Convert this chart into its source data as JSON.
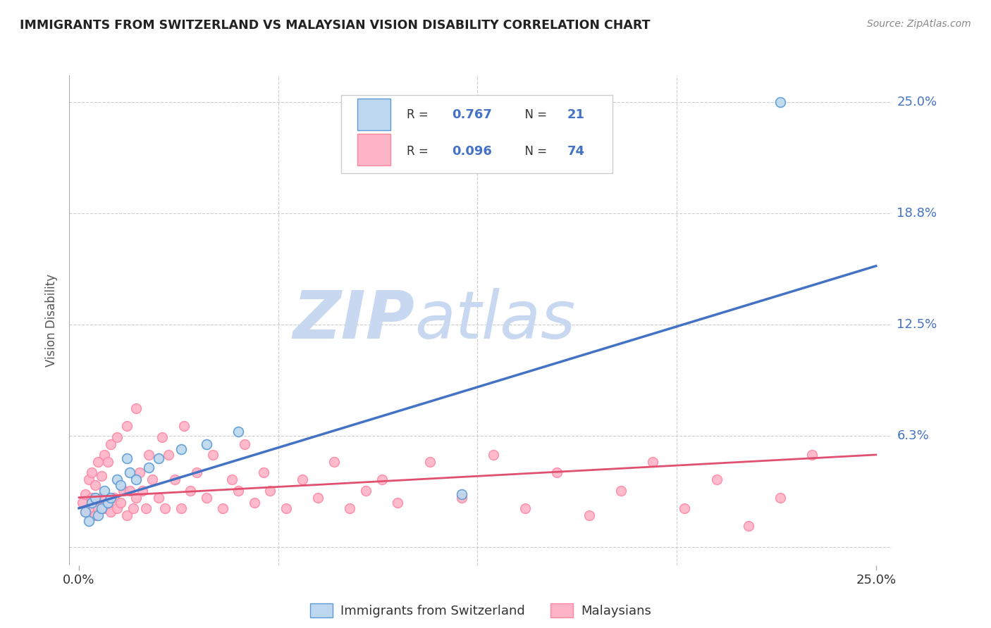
{
  "title": "IMMIGRANTS FROM SWITZERLAND VS MALAYSIAN VISION DISABILITY CORRELATION CHART",
  "source": "Source: ZipAtlas.com",
  "xlabel_legend1": "Immigrants from Switzerland",
  "xlabel_legend2": "Malaysians",
  "ylabel": "Vision Disability",
  "r1": 0.767,
  "n1": 21,
  "r2": 0.096,
  "n2": 74,
  "xlim": [
    -0.003,
    0.255
  ],
  "ylim": [
    -0.01,
    0.265
  ],
  "ytick_values": [
    0.0,
    0.0625,
    0.125,
    0.1875,
    0.25
  ],
  "ytick_labels": [
    "",
    "6.3%",
    "12.5%",
    "18.8%",
    "25.0%"
  ],
  "color_blue": "#4472C4",
  "color_blue_light": "#BDD7EE",
  "color_blue_scatter_edge": "#5B9BD5",
  "color_pink": "#FFB3C6",
  "color_pink_edge": "#FF85A1",
  "color_pink_line": "#E05070",
  "color_text_blue": "#4472C4",
  "watermark_color": "#C8D8F0",
  "background_color": "#FFFFFF",
  "blue_scatter_x": [
    0.002,
    0.003,
    0.004,
    0.005,
    0.006,
    0.007,
    0.008,
    0.009,
    0.01,
    0.012,
    0.013,
    0.015,
    0.016,
    0.018,
    0.022,
    0.025,
    0.032,
    0.04,
    0.05,
    0.12,
    0.22
  ],
  "blue_scatter_y": [
    0.02,
    0.015,
    0.025,
    0.028,
    0.018,
    0.022,
    0.032,
    0.025,
    0.028,
    0.038,
    0.035,
    0.05,
    0.042,
    0.038,
    0.045,
    0.05,
    0.055,
    0.058,
    0.065,
    0.03,
    0.25
  ],
  "pink_scatter_x": [
    0.001,
    0.002,
    0.002,
    0.003,
    0.003,
    0.004,
    0.004,
    0.005,
    0.005,
    0.006,
    0.006,
    0.007,
    0.007,
    0.008,
    0.008,
    0.009,
    0.009,
    0.01,
    0.01,
    0.011,
    0.012,
    0.012,
    0.013,
    0.014,
    0.015,
    0.015,
    0.016,
    0.017,
    0.018,
    0.018,
    0.019,
    0.02,
    0.021,
    0.022,
    0.023,
    0.025,
    0.026,
    0.027,
    0.028,
    0.03,
    0.032,
    0.033,
    0.035,
    0.037,
    0.04,
    0.042,
    0.045,
    0.048,
    0.05,
    0.052,
    0.055,
    0.058,
    0.06,
    0.065,
    0.07,
    0.075,
    0.08,
    0.085,
    0.09,
    0.095,
    0.1,
    0.11,
    0.12,
    0.13,
    0.14,
    0.15,
    0.16,
    0.17,
    0.18,
    0.19,
    0.2,
    0.21,
    0.22,
    0.23
  ],
  "pink_scatter_y": [
    0.025,
    0.02,
    0.03,
    0.022,
    0.038,
    0.028,
    0.042,
    0.018,
    0.035,
    0.022,
    0.048,
    0.028,
    0.04,
    0.022,
    0.052,
    0.025,
    0.048,
    0.02,
    0.058,
    0.028,
    0.022,
    0.062,
    0.025,
    0.032,
    0.018,
    0.068,
    0.032,
    0.022,
    0.078,
    0.028,
    0.042,
    0.032,
    0.022,
    0.052,
    0.038,
    0.028,
    0.062,
    0.022,
    0.052,
    0.038,
    0.022,
    0.068,
    0.032,
    0.042,
    0.028,
    0.052,
    0.022,
    0.038,
    0.032,
    0.058,
    0.025,
    0.042,
    0.032,
    0.022,
    0.038,
    0.028,
    0.048,
    0.022,
    0.032,
    0.038,
    0.025,
    0.048,
    0.028,
    0.052,
    0.022,
    0.042,
    0.018,
    0.032,
    0.048,
    0.022,
    0.038,
    0.012,
    0.028,
    0.052
  ],
  "blue_line_x": [
    0.0,
    0.25
  ],
  "blue_line_y": [
    0.022,
    0.158
  ],
  "pink_line_x": [
    0.0,
    0.25
  ],
  "pink_line_y": [
    0.028,
    0.052
  ]
}
